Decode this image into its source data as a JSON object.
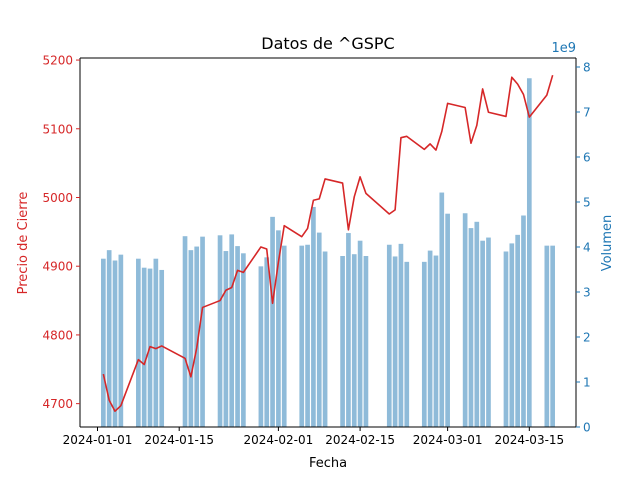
{
  "chart_data": {
    "type": "bar+line",
    "title": "Datos de ^GSPC",
    "xlabel": "Fecha",
    "ylabel_left": "Precio de Cierre",
    "ylabel_right": "Volumen",
    "right_offset_text": "1e9",
    "x_ticks": [
      "2024-01-01",
      "2024-01-15",
      "2024-02-01",
      "2024-02-15",
      "2024-03-01",
      "2024-03-15"
    ],
    "y_left_ticks": [
      4700,
      4800,
      4900,
      5000,
      5100,
      5200
    ],
    "y_left_lim": [
      4666,
      5203
    ],
    "y_right_ticks": [
      0,
      1,
      2,
      3,
      4,
      5,
      6,
      7,
      8
    ],
    "y_right_lim": [
      0,
      8.2
    ],
    "grid": false,
    "colors": {
      "close": "#d62728",
      "volume": "#1f77b4",
      "left_axis": "#d62728",
      "right_axis": "#1f77b4",
      "axis": "#000000"
    },
    "series": [
      {
        "name": "Cierre",
        "kind": "line",
        "x": [
          "2024-01-02",
          "2024-01-03",
          "2024-01-04",
          "2024-01-05",
          "2024-01-08",
          "2024-01-09",
          "2024-01-10",
          "2024-01-11",
          "2024-01-12",
          "2024-01-16",
          "2024-01-17",
          "2024-01-18",
          "2024-01-19",
          "2024-01-22",
          "2024-01-23",
          "2024-01-24",
          "2024-01-25",
          "2024-01-26",
          "2024-01-29",
          "2024-01-30",
          "2024-01-31",
          "2024-02-01",
          "2024-02-02",
          "2024-02-05",
          "2024-02-06",
          "2024-02-07",
          "2024-02-08",
          "2024-02-09",
          "2024-02-12",
          "2024-02-13",
          "2024-02-14",
          "2024-02-15",
          "2024-02-16",
          "2024-02-20",
          "2024-02-21",
          "2024-02-22",
          "2024-02-23",
          "2024-02-26",
          "2024-02-27",
          "2024-02-28",
          "2024-02-29",
          "2024-03-01",
          "2024-03-04",
          "2024-03-05",
          "2024-03-06",
          "2024-03-07",
          "2024-03-08",
          "2024-03-11",
          "2024-03-12",
          "2024-03-13",
          "2024-03-14",
          "2024-03-15",
          "2024-03-18",
          "2024-03-19"
        ],
        "values": [
          4743,
          4705,
          4689,
          4697,
          4764,
          4757,
          4783,
          4780,
          4784,
          4766,
          4739,
          4781,
          4840,
          4850,
          4865,
          4869,
          4894,
          4891,
          4928,
          4925,
          4846,
          4906,
          4959,
          4943,
          4955,
          4996,
          4998,
          5027,
          5021,
          4953,
          5001,
          5030,
          5006,
          4976,
          4982,
          5087,
          5089,
          5070,
          5078,
          5069,
          5096,
          5137,
          5131,
          5079,
          5105,
          5158,
          5124,
          5118,
          5175,
          5165,
          5150,
          5117,
          5149,
          5178
        ]
      },
      {
        "name": "Volumen",
        "kind": "bar",
        "axis": "right",
        "x": [
          "2024-01-02",
          "2024-01-03",
          "2024-01-04",
          "2024-01-05",
          "2024-01-08",
          "2024-01-09",
          "2024-01-10",
          "2024-01-11",
          "2024-01-12",
          "2024-01-16",
          "2024-01-17",
          "2024-01-18",
          "2024-01-19",
          "2024-01-22",
          "2024-01-23",
          "2024-01-24",
          "2024-01-25",
          "2024-01-26",
          "2024-01-29",
          "2024-01-30",
          "2024-01-31",
          "2024-02-01",
          "2024-02-02",
          "2024-02-05",
          "2024-02-06",
          "2024-02-07",
          "2024-02-08",
          "2024-02-09",
          "2024-02-12",
          "2024-02-13",
          "2024-02-14",
          "2024-02-15",
          "2024-02-16",
          "2024-02-20",
          "2024-02-21",
          "2024-02-22",
          "2024-02-23",
          "2024-02-26",
          "2024-02-27",
          "2024-02-28",
          "2024-02-29",
          "2024-03-01",
          "2024-03-04",
          "2024-03-05",
          "2024-03-06",
          "2024-03-07",
          "2024-03-08",
          "2024-03-11",
          "2024-03-12",
          "2024-03-13",
          "2024-03-14",
          "2024-03-15",
          "2024-03-18",
          "2024-03-19"
        ],
        "values": [
          3.74,
          3.93,
          3.7,
          3.83,
          3.74,
          3.54,
          3.52,
          3.74,
          3.49,
          4.24,
          3.93,
          4.01,
          4.23,
          4.26,
          3.91,
          4.28,
          4.02,
          3.86,
          3.57,
          3.77,
          4.67,
          4.37,
          4.03,
          4.03,
          4.05,
          4.89,
          4.32,
          3.9,
          3.8,
          4.31,
          3.84,
          4.14,
          3.8,
          4.05,
          3.79,
          4.07,
          3.67,
          3.67,
          3.92,
          3.81,
          5.21,
          4.74,
          4.75,
          4.42,
          4.56,
          4.14,
          4.21,
          3.9,
          4.08,
          4.27,
          4.7,
          7.75,
          4.03,
          4.03
        ]
      }
    ]
  }
}
